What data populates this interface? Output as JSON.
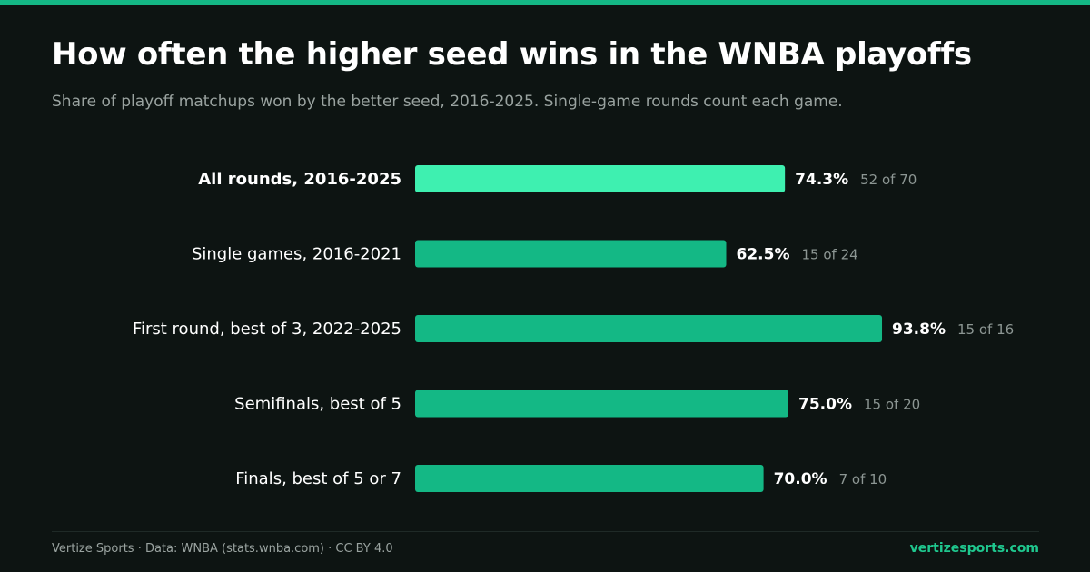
{
  "header": {
    "title": "How often the higher seed wins in the WNBA playoffs",
    "subtitle": "Share of playoff matchups won by the better seed, 2016-2025. Single-game rounds count each game."
  },
  "colors": {
    "background": "#0d1412",
    "accent": "#14b885",
    "highlight": "#3ef0b0",
    "bar": "#14b885"
  },
  "chart_data": {
    "type": "bar",
    "orientation": "horizontal",
    "title": "How often the higher seed wins in the WNBA playoffs",
    "subtitle": "Share of playoff matchups won by the better seed, 2016-2025. Single-game rounds count each game.",
    "categories": [
      "All rounds, 2016-2025",
      "Single games, 2016-2021",
      "First round, best of 3, 2022-2025",
      "Semifinals, best of 5",
      "Finals, best of 5 or 7"
    ],
    "values": [
      74.3,
      62.5,
      93.8,
      75.0,
      70.0
    ],
    "value_labels": [
      "74.3%",
      "62.5%",
      "93.8%",
      "75.0%",
      "70.0%"
    ],
    "counts": [
      "52 of 70",
      "15 of 24",
      "15 of 16",
      "15 of 20",
      "7 of 10"
    ],
    "highlighted_index": 0,
    "xlim": [
      0,
      100
    ],
    "grid": false,
    "legend": "none"
  },
  "footer": {
    "source": "Vertize Sports · Data: WNBA (stats.wnba.com) · CC BY 4.0",
    "site": "vertizesports.com"
  }
}
